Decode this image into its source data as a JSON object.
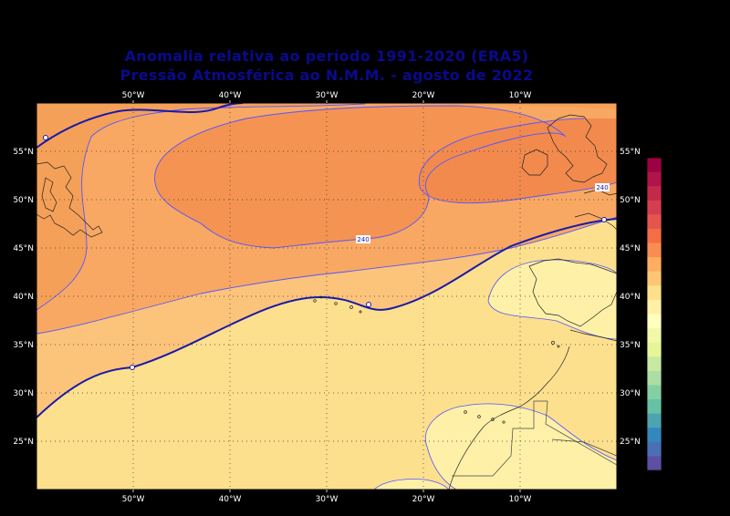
{
  "title": {
    "line1": "Anomalia relativa ao período 1991-2020 (ERA5)",
    "line2": "Pressão Atmosférica ao N.M.M. - agosto de 2022"
  },
  "map": {
    "lon_labels": [
      "50°W",
      "40°W",
      "30°W",
      "20°W",
      "10°W"
    ],
    "lat_labels": [
      "55°N",
      "50°N",
      "45°N",
      "40°N",
      "35°N",
      "30°N",
      "25°N"
    ],
    "contour_labels": [
      "240",
      "240"
    ],
    "grid": true
  },
  "colorbar": {
    "colors": [
      "#9e0142",
      "#b0144a",
      "#c2294a",
      "#d53e4f",
      "#e4564d",
      "#f46d43",
      "#f88d52",
      "#fdae61",
      "#fdc675",
      "#fee08b",
      "#fff0a6",
      "#ffffbf",
      "#f1f9a9",
      "#e6f598",
      "#c7e9a0",
      "#abdda4",
      "#85cfa4",
      "#66c2a5",
      "#4ea3b0",
      "#3288bd",
      "#4a6fb5",
      "#5e4fa2"
    ]
  },
  "colors": {
    "title": "#0a0a8c",
    "zero_contour": "#1a1aa8",
    "thin_contour": "#5555ff"
  }
}
